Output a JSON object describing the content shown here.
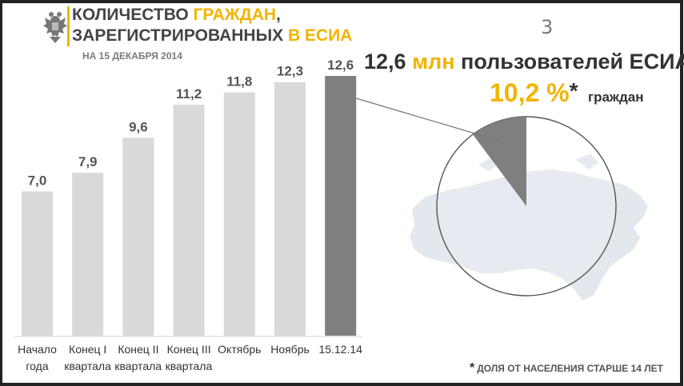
{
  "title": {
    "line1_part1": "КОЛИЧЕСТВО ",
    "line1_accent": "ГРАЖДАН",
    "line1_tail": ",",
    "line2_part1": "ЗАРЕГИСТРИРОВАННЫХ ",
    "line2_accent": "В ЕСИА"
  },
  "subtitle": "НА 15 ДЕКАБРЯ 2014",
  "slide_number": "3",
  "headline": {
    "value": "12,6",
    "unit": "млн",
    "text": "пользователей ЕСИА"
  },
  "share": {
    "percent_text": "10,2 %",
    "star": "*",
    "label": "граждан",
    "value": 10.2
  },
  "footnote": {
    "star": "*",
    "text": "ДОЛЯ ОТ НАСЕЛЕНИЯ СТАРШЕ 14 ЛЕТ"
  },
  "colors": {
    "accent": "#f2b400",
    "bar": "#d9d9d9",
    "bar_highlight": "#7f7f7f",
    "text": "#444444"
  },
  "icons": {
    "emblem": "russian-coat-of-arms-icon",
    "map": "russia-map"
  },
  "chart_data": {
    "type": "bar",
    "title": "КОЛИЧЕСТВО ГРАЖДАН, ЗАРЕГИСТРИРОВАННЫХ В ЕСИА",
    "xlabel": "",
    "ylabel": "",
    "unit": "млн",
    "categories": [
      [
        "Начало",
        "года"
      ],
      [
        "Конец I",
        "квартала"
      ],
      [
        "Конец II",
        "квартала"
      ],
      [
        "Конец III",
        "квартала"
      ],
      [
        "Октябрь"
      ],
      [
        "Ноябрь"
      ],
      [
        "15.12.14"
      ]
    ],
    "values": [
      7.0,
      7.9,
      9.6,
      11.2,
      11.8,
      12.3,
      12.6
    ],
    "labels": [
      "7,0",
      "7,9",
      "9,6",
      "11,2",
      "11,8",
      "12,3",
      "12,6"
    ],
    "highlight_index": 6,
    "ylim": [
      0,
      12.6
    ],
    "grid": false,
    "legend": "none"
  }
}
